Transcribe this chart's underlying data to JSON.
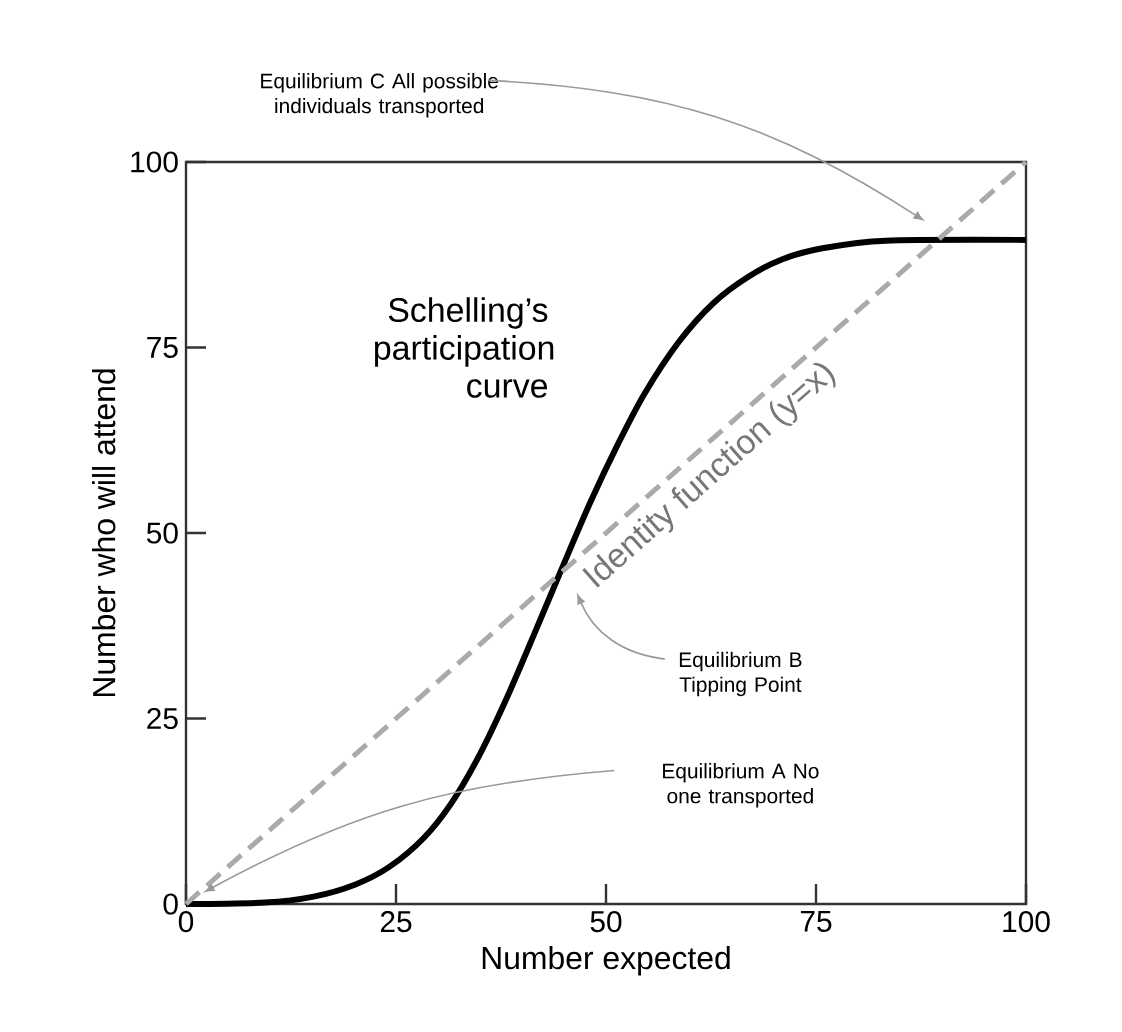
{
  "chart_data": {
    "type": "line",
    "xlabel": "Number expected",
    "ylabel": "Number who will attend",
    "xlim": [
      0,
      100
    ],
    "ylim": [
      0,
      100
    ],
    "xticks": [
      0,
      25,
      50,
      75,
      100
    ],
    "yticks": [
      0,
      25,
      50,
      75,
      100
    ],
    "grid": false,
    "marker": "none",
    "series": [
      {
        "name": "Schelling’s participation curve",
        "color": "#000000",
        "line_style": "solid",
        "x": [
          0,
          9.4,
          15.2,
          20.1,
          24.2,
          28.3,
          31.6,
          34.9,
          38.2,
          41.5,
          44.7,
          48,
          51.3,
          54.6,
          58.7,
          62.8,
          66.9,
          71,
          75.9,
          83.3,
          100
        ],
        "values": [
          0,
          0.2,
          1,
          2.6,
          5,
          8.9,
          13.6,
          20,
          27.8,
          36.5,
          45.1,
          53.8,
          61.7,
          68.8,
          75.8,
          81,
          84.5,
          86.9,
          88.4,
          89.4,
          89.5
        ]
      },
      {
        "name": "Identity function (y=x)",
        "color": "#aaaaaa",
        "line_style": "dashed",
        "x": [
          0,
          100
        ],
        "values": [
          0,
          100
        ]
      }
    ],
    "annotations": [
      "Equilibrium C All possible individuals transported",
      "Equilibrium B Tipping Point",
      "Equilibrium A No one transported"
    ]
  }
}
